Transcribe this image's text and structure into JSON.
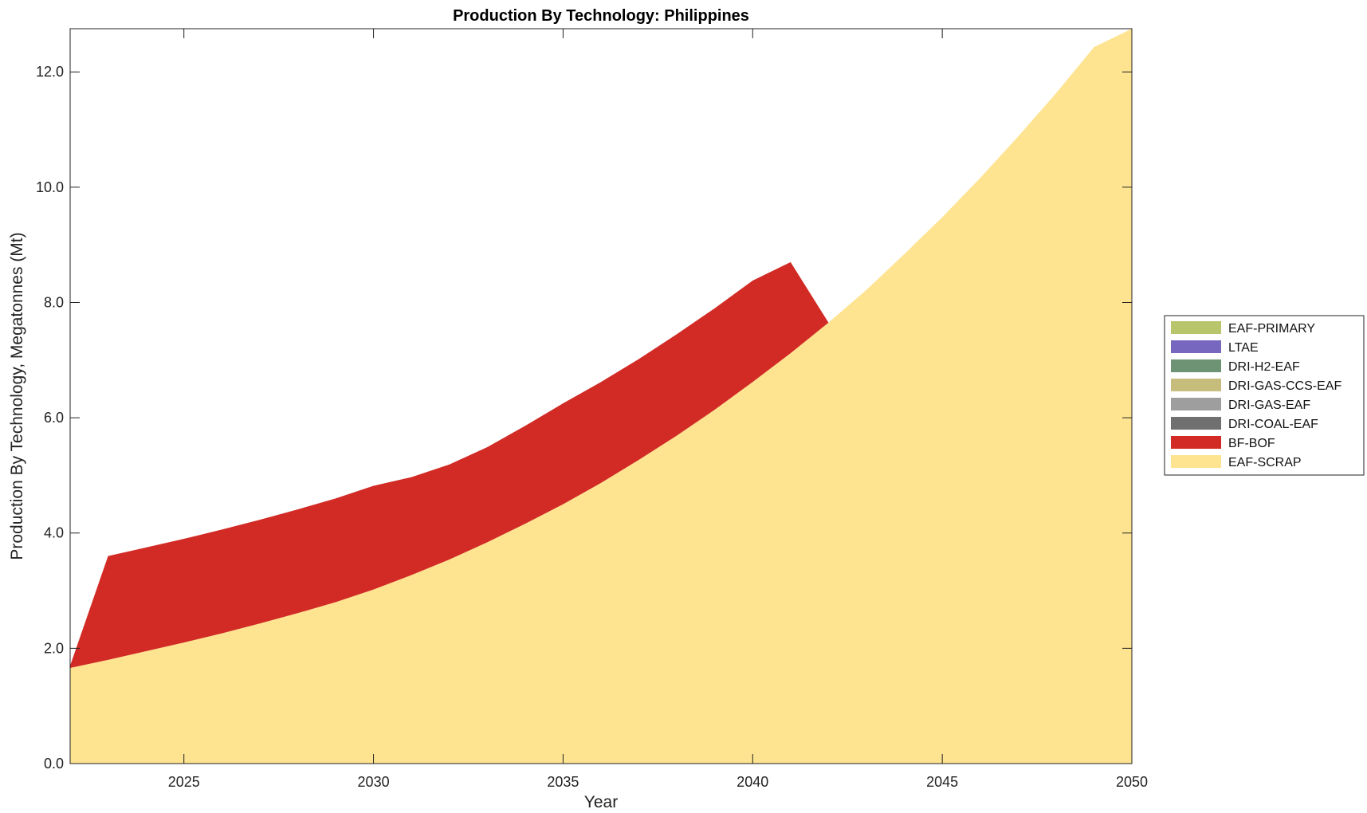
{
  "chart_data": {
    "type": "area",
    "title": "Production By Technology: Philippines",
    "xlabel": "Year",
    "ylabel": "Production By Technology, Megatonnes (Mt)",
    "xlim": [
      2022,
      2050
    ],
    "ylim": [
      0,
      12.75
    ],
    "xticks": [
      2025,
      2030,
      2035,
      2040,
      2045,
      2050
    ],
    "yticks": [
      0,
      2,
      4,
      6,
      8,
      10,
      12
    ],
    "ytick_labels": [
      "0.0",
      "2.0",
      "4.0",
      "6.0",
      "8.0",
      "10.0",
      "12.0"
    ],
    "grid": false,
    "legend_position": "right",
    "x": [
      2022,
      2023,
      2024,
      2025,
      2026,
      2027,
      2028,
      2029,
      2030,
      2031,
      2032,
      2033,
      2034,
      2035,
      2036,
      2037,
      2038,
      2039,
      2040,
      2041,
      2042,
      2043,
      2044,
      2045,
      2046,
      2047,
      2048,
      2049,
      2050
    ],
    "series": [
      {
        "name": "EAF-SCRAP",
        "color": "#FEE491",
        "values": [
          1.66,
          1.8,
          1.95,
          2.1,
          2.26,
          2.43,
          2.61,
          2.8,
          3.02,
          3.27,
          3.54,
          3.84,
          4.16,
          4.5,
          4.87,
          5.27,
          5.69,
          6.14,
          6.62,
          7.12,
          7.65,
          8.22,
          8.84,
          9.48,
          10.16,
          10.88,
          11.63,
          12.43,
          12.75
        ]
      },
      {
        "name": "BF-BOF",
        "color": "#D22B25",
        "values": [
          0.04,
          1.8,
          1.8,
          1.8,
          1.8,
          1.8,
          1.8,
          1.8,
          1.8,
          1.7,
          1.65,
          1.65,
          1.7,
          1.75,
          1.75,
          1.75,
          1.76,
          1.76,
          1.76,
          1.58,
          0,
          0,
          0,
          0,
          0,
          0,
          0,
          0,
          0
        ]
      },
      {
        "name": "DRI-COAL-EAF",
        "color": "#707070",
        "values": [
          0,
          0,
          0,
          0,
          0,
          0,
          0,
          0,
          0,
          0,
          0,
          0,
          0,
          0,
          0,
          0,
          0,
          0,
          0,
          0,
          0,
          0,
          0,
          0,
          0,
          0,
          0,
          0,
          0
        ]
      },
      {
        "name": "DRI-GAS-EAF",
        "color": "#9E9E9E",
        "values": [
          0,
          0,
          0,
          0,
          0,
          0,
          0,
          0,
          0,
          0,
          0,
          0,
          0,
          0,
          0,
          0,
          0,
          0,
          0,
          0,
          0,
          0,
          0,
          0,
          0,
          0,
          0,
          0,
          0
        ]
      },
      {
        "name": "DRI-GAS-CCS-EAF",
        "color": "#C6BC7C",
        "values": [
          0,
          0,
          0,
          0,
          0,
          0,
          0,
          0,
          0,
          0,
          0,
          0,
          0,
          0,
          0,
          0,
          0,
          0,
          0,
          0,
          0,
          0,
          0,
          0,
          0,
          0,
          0,
          0,
          0
        ]
      },
      {
        "name": "DRI-H2-EAF",
        "color": "#6E9374",
        "values": [
          0,
          0,
          0,
          0,
          0,
          0,
          0,
          0,
          0,
          0,
          0,
          0,
          0,
          0,
          0,
          0,
          0,
          0,
          0,
          0,
          0,
          0,
          0,
          0,
          0,
          0,
          0,
          0,
          0
        ]
      },
      {
        "name": "LTAE",
        "color": "#7767BE",
        "values": [
          0,
          0,
          0,
          0,
          0,
          0,
          0,
          0,
          0,
          0,
          0,
          0,
          0,
          0,
          0,
          0,
          0,
          0,
          0,
          0,
          0,
          0,
          0,
          0,
          0,
          0,
          0,
          0,
          0
        ]
      },
      {
        "name": "EAF-PRIMARY",
        "color": "#B8C56A",
        "values": [
          0,
          0,
          0,
          0,
          0,
          0,
          0,
          0,
          0,
          0,
          0,
          0,
          0,
          0,
          0,
          0,
          0,
          0,
          0,
          0,
          0,
          0,
          0,
          0,
          0,
          0,
          0,
          0,
          0
        ]
      }
    ],
    "legend_order": [
      "EAF-PRIMARY",
      "LTAE",
      "DRI-H2-EAF",
      "DRI-GAS-CCS-EAF",
      "DRI-GAS-EAF",
      "DRI-COAL-EAF",
      "BF-BOF",
      "EAF-SCRAP"
    ]
  }
}
